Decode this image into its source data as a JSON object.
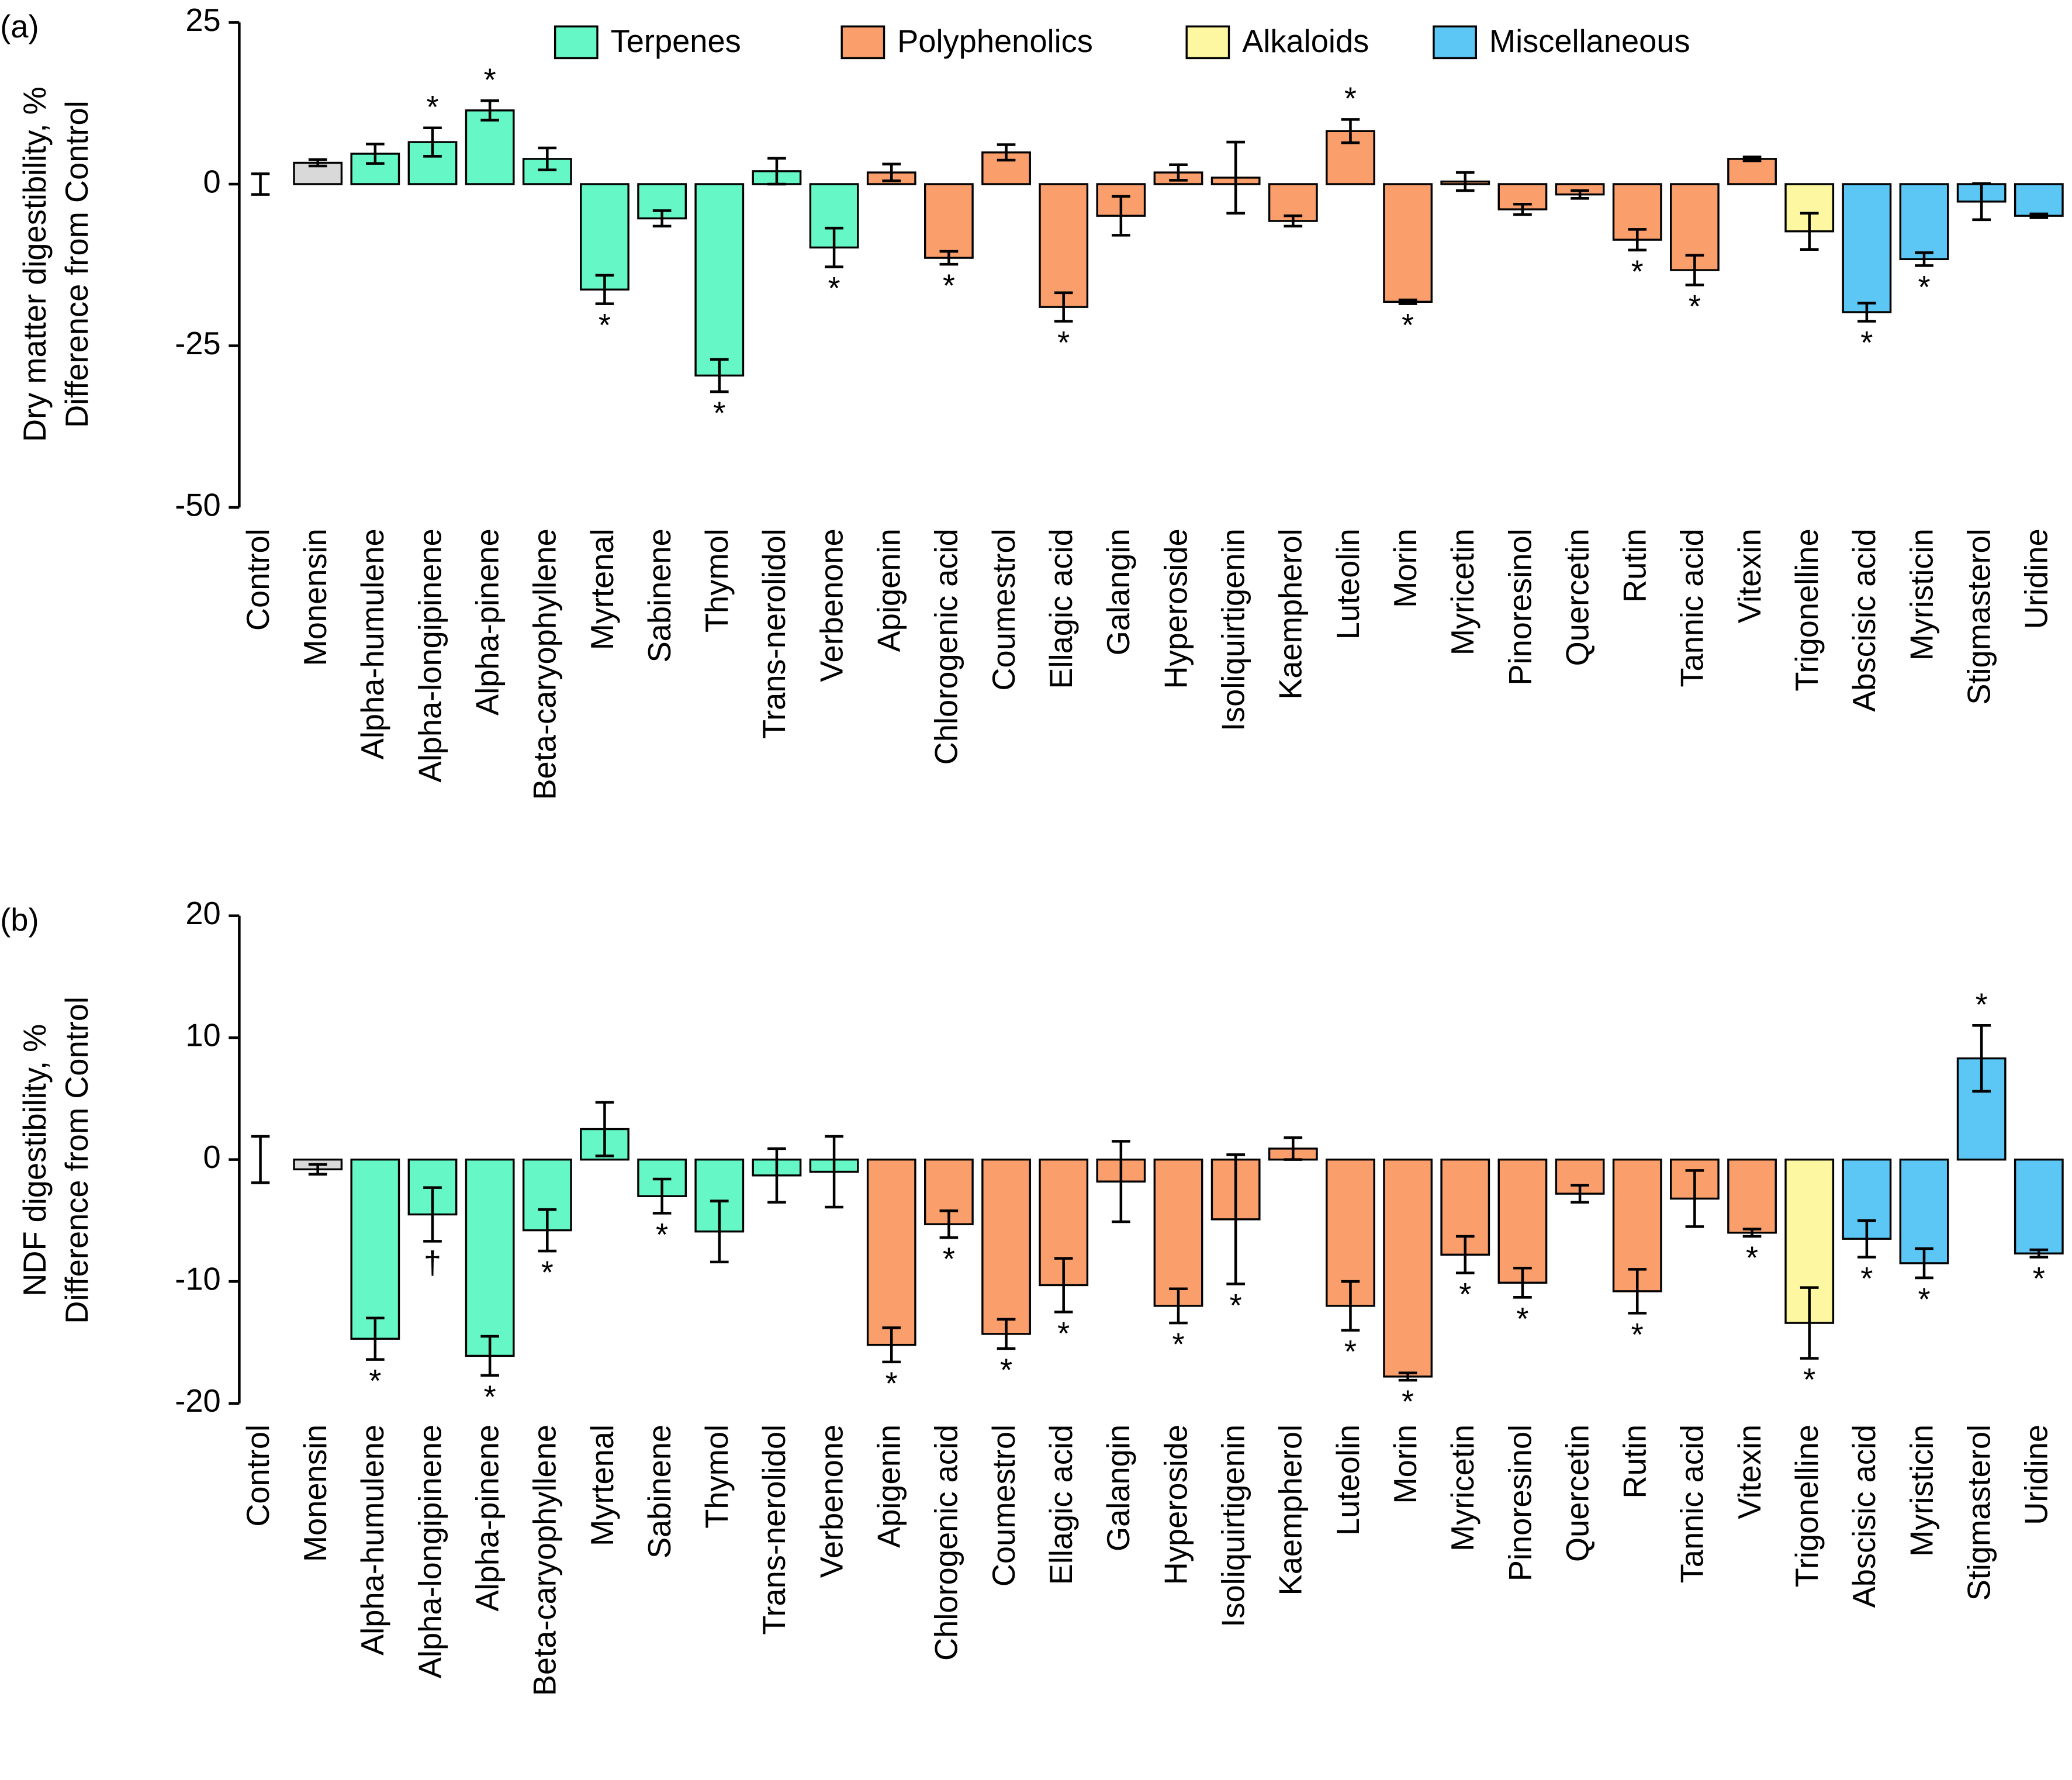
{
  "chart_data": [
    {
      "type": "bar",
      "panel_label": "(a)",
      "ylabel": [
        "Dry matter digestibility, %",
        "Difference from Control"
      ],
      "legend": [
        {
          "name": "Terpenes",
          "color": "#66f7c6"
        },
        {
          "name": "Polyphenolics",
          "color": "#fa9f6c"
        },
        {
          "name": "Alkaloids",
          "color": "#fcf7a0"
        },
        {
          "name": "Miscellaneous",
          "color": "#5cc6f5"
        }
      ],
      "categories": [
        "Control",
        "Monensin",
        "Alpha-humulene",
        "Alpha-longipinene",
        "Alpha-pinene",
        "Beta-caryophyllene",
        "Myrtenal",
        "Sabinene",
        "Thymol",
        "Trans-nerolidol",
        "Verbenone",
        "Apigenin",
        "Chlorogenic acid",
        "Coumestrol",
        "Ellagic acid",
        "Galangin",
        "Hyperoside",
        "Isoliquirtigenin",
        "Kaempherol",
        "Luteolin",
        "Morin",
        "Myricetin",
        "Pinoresinol",
        "Quercetin",
        "Rutin",
        "Tannic acid",
        "Vitexin",
        "Trigonelline",
        "Abscisic acid",
        "Myristicin",
        "Stigmasterol",
        "Uridine"
      ],
      "values": [
        0,
        3.3,
        4.7,
        6.5,
        11.4,
        3.9,
        -16.3,
        -5.3,
        -29.6,
        2.0,
        -9.8,
        1.8,
        -11.4,
        4.9,
        -19.0,
        -4.9,
        1.8,
        1.0,
        -5.7,
        8.2,
        -18.2,
        0.4,
        -3.9,
        -1.6,
        -8.6,
        -13.3,
        3.9,
        -7.3,
        -19.8,
        -11.6,
        -2.7,
        -4.9
      ],
      "errors": [
        1.6,
        0.5,
        1.5,
        2.2,
        1.5,
        1.7,
        2.2,
        1.2,
        2.5,
        2.0,
        3.0,
        1.3,
        1.0,
        1.2,
        2.2,
        3.0,
        1.2,
        5.5,
        0.8,
        1.8,
        0.3,
        1.4,
        0.8,
        0.6,
        1.6,
        2.3,
        0.3,
        2.8,
        1.4,
        1.0,
        2.8,
        0.3
      ],
      "markers": [
        null,
        null,
        null,
        "*",
        "*",
        null,
        "*",
        null,
        "*",
        null,
        "*",
        null,
        "*",
        null,
        "*",
        null,
        null,
        null,
        null,
        "*",
        "*",
        null,
        null,
        null,
        "*",
        "*",
        null,
        null,
        "*",
        "*",
        null,
        null
      ],
      "colors": [
        "#ffffff",
        "#d9d9d9",
        "#66f7c6",
        "#66f7c6",
        "#66f7c6",
        "#66f7c6",
        "#66f7c6",
        "#66f7c6",
        "#66f7c6",
        "#66f7c6",
        "#66f7c6",
        "#fa9f6c",
        "#fa9f6c",
        "#fa9f6c",
        "#fa9f6c",
        "#fa9f6c",
        "#fa9f6c",
        "#fa9f6c",
        "#fa9f6c",
        "#fa9f6c",
        "#fa9f6c",
        "#fa9f6c",
        "#fa9f6c",
        "#fa9f6c",
        "#fa9f6c",
        "#fa9f6c",
        "#fa9f6c",
        "#fcf7a0",
        "#5cc6f5",
        "#5cc6f5",
        "#5cc6f5",
        "#5cc6f5"
      ],
      "ylim": [
        -50,
        25
      ],
      "yticks": [
        -50,
        -25,
        0,
        25
      ]
    },
    {
      "type": "bar",
      "panel_label": "(b)",
      "ylabel": [
        "NDF digestibility, %",
        "Difference from Control"
      ],
      "categories": [
        "Control",
        "Monensin",
        "Alpha-humulene",
        "Alpha-longipinene",
        "Alpha-pinene",
        "Beta-caryophyllene",
        "Myrtenal",
        "Sabinene",
        "Thymol",
        "Trans-nerolidol",
        "Verbenone",
        "Apigenin",
        "Chlorogenic acid",
        "Coumestrol",
        "Ellagic acid",
        "Galangin",
        "Hyperoside",
        "Isoliquirtigenin",
        "Kaempherol",
        "Luteolin",
        "Morin",
        "Myricetin",
        "Pinoresinol",
        "Quercetin",
        "Rutin",
        "Tannic acid",
        "Vitexin",
        "Trigonelline",
        "Abscisic acid",
        "Myristicin",
        "Stigmasterol",
        "Uridine"
      ],
      "values": [
        0,
        -0.8,
        -14.7,
        -4.5,
        -16.1,
        -5.8,
        2.5,
        -3.0,
        -5.9,
        -1.3,
        -1.0,
        -15.2,
        -5.3,
        -14.3,
        -10.3,
        -1.8,
        -12.0,
        -4.9,
        0.9,
        -12.0,
        -17.8,
        -7.8,
        -10.1,
        -2.8,
        -10.8,
        -3.2,
        -6.0,
        -13.4,
        -6.5,
        -8.5,
        8.3,
        -7.7
      ],
      "errors": [
        1.9,
        0.4,
        1.7,
        2.2,
        1.6,
        1.7,
        2.2,
        1.4,
        2.5,
        2.2,
        2.9,
        1.4,
        1.1,
        1.2,
        2.2,
        3.3,
        1.4,
        5.3,
        0.9,
        2.0,
        0.3,
        1.5,
        1.2,
        0.7,
        1.8,
        2.3,
        0.3,
        2.9,
        1.5,
        1.2,
        2.7,
        0.3
      ],
      "markers": [
        null,
        null,
        "*",
        "†",
        "*",
        "*",
        null,
        "*",
        null,
        null,
        null,
        "*",
        "*",
        "*",
        "*",
        null,
        "*",
        "*",
        null,
        "*",
        "*",
        "*",
        "*",
        null,
        "*",
        null,
        "*",
        "*",
        "*",
        "*",
        "*",
        "*"
      ],
      "colors": [
        "#ffffff",
        "#d9d9d9",
        "#66f7c6",
        "#66f7c6",
        "#66f7c6",
        "#66f7c6",
        "#66f7c6",
        "#66f7c6",
        "#66f7c6",
        "#66f7c6",
        "#66f7c6",
        "#fa9f6c",
        "#fa9f6c",
        "#fa9f6c",
        "#fa9f6c",
        "#fa9f6c",
        "#fa9f6c",
        "#fa9f6c",
        "#fa9f6c",
        "#fa9f6c",
        "#fa9f6c",
        "#fa9f6c",
        "#fa9f6c",
        "#fa9f6c",
        "#fa9f6c",
        "#fa9f6c",
        "#fa9f6c",
        "#fcf7a0",
        "#5cc6f5",
        "#5cc6f5",
        "#5cc6f5",
        "#5cc6f5"
      ],
      "ylim": [
        -20,
        20
      ],
      "yticks": [
        -20,
        -10,
        0,
        10,
        20
      ]
    }
  ]
}
